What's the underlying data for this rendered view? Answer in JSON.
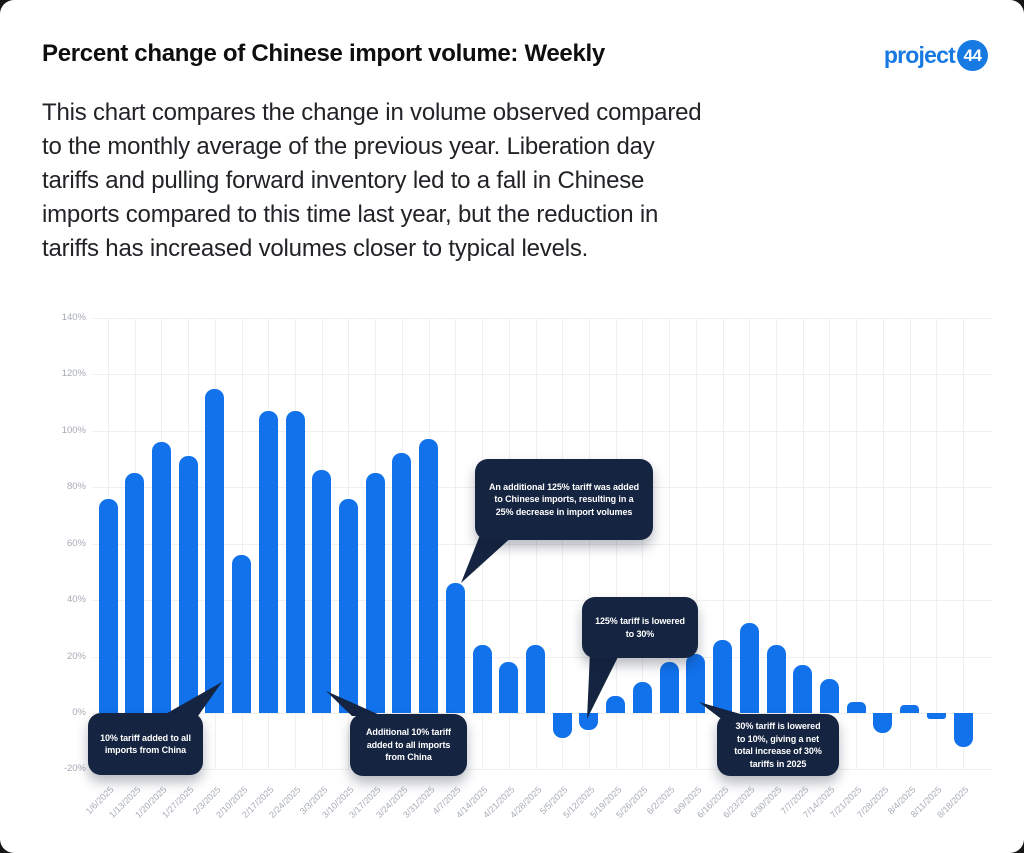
{
  "header": {
    "title": "Percent change of Chinese import volume: Weekly",
    "logo_text": "project",
    "logo_badge": "44"
  },
  "description_lines": [
    "This chart compares the change in volume observed compared",
    "to the monthly average of the previous year. Liberation day",
    "tariffs and pulling forward inventory led to a fall in Chinese",
    "imports compared to this time last year, but the reduction in",
    "tariffs has increased volumes closer to typical levels."
  ],
  "chart_data": {
    "type": "bar",
    "title": "Percent change of Chinese import volume: Weekly",
    "xlabel": "",
    "ylabel": "",
    "ylim": [
      -20,
      140
    ],
    "grid": true,
    "bar_color": "#1172ec",
    "axis_label_color": "#a6abb5",
    "ytick_labels": [
      "140%",
      "120%",
      "100%",
      "80%",
      "60%",
      "40%",
      "20%",
      "0%",
      "-20%"
    ],
    "yticks": [
      140,
      120,
      100,
      80,
      60,
      40,
      20,
      0,
      -20
    ],
    "categories": [
      "1/6/2025",
      "1/13/2025",
      "1/20/2025",
      "1/27/2025",
      "2/3/2025",
      "2/10/2025",
      "2/17/2025",
      "2/24/2025",
      "3/3/2025",
      "3/10/2025",
      "3/17/2025",
      "3/24/2025",
      "3/31/2025",
      "4/7/2025",
      "4/14/2025",
      "4/21/2025",
      "4/28/2025",
      "5/5/2025",
      "5/12/2025",
      "5/19/2025",
      "5/26/2025",
      "6/2/2025",
      "6/9/2025",
      "6/16/2025",
      "6/23/2025",
      "6/30/2025",
      "7/7/2025",
      "7/14/2025",
      "7/21/2025",
      "7/28/2025",
      "8/4/2025",
      "8/11/2025",
      "8/18/2025"
    ],
    "values": [
      76,
      85,
      96,
      91,
      115,
      56,
      107,
      107,
      86,
      76,
      85,
      92,
      97,
      46,
      24,
      18,
      24,
      -9,
      -6,
      6,
      11,
      18,
      21,
      26,
      32,
      24,
      17,
      12,
      4,
      -7,
      3,
      -2,
      -12
    ],
    "annotations": [
      {
        "lines": [
          "10% tariff added to all",
          "imports from China"
        ],
        "target_date": "2/3/2025"
      },
      {
        "lines": [
          "Additional 10% tariff",
          "added to all imports",
          "from China"
        ],
        "target_date": "3/3/2025"
      },
      {
        "lines": [
          "An additional 125% tariff was added",
          "to Chinese imports, resulting in a",
          "25% decrease in import volumes"
        ],
        "target_date": "4/7/2025"
      },
      {
        "lines": [
          "125% tariff is lowered",
          "to 30%"
        ],
        "target_date": "5/12/2025"
      },
      {
        "lines": [
          "30% tariff is lowered",
          "to 10%, giving a net",
          "total increase of 30%",
          "tariffs in 2025"
        ],
        "target_date": "6/9/2025"
      }
    ]
  }
}
